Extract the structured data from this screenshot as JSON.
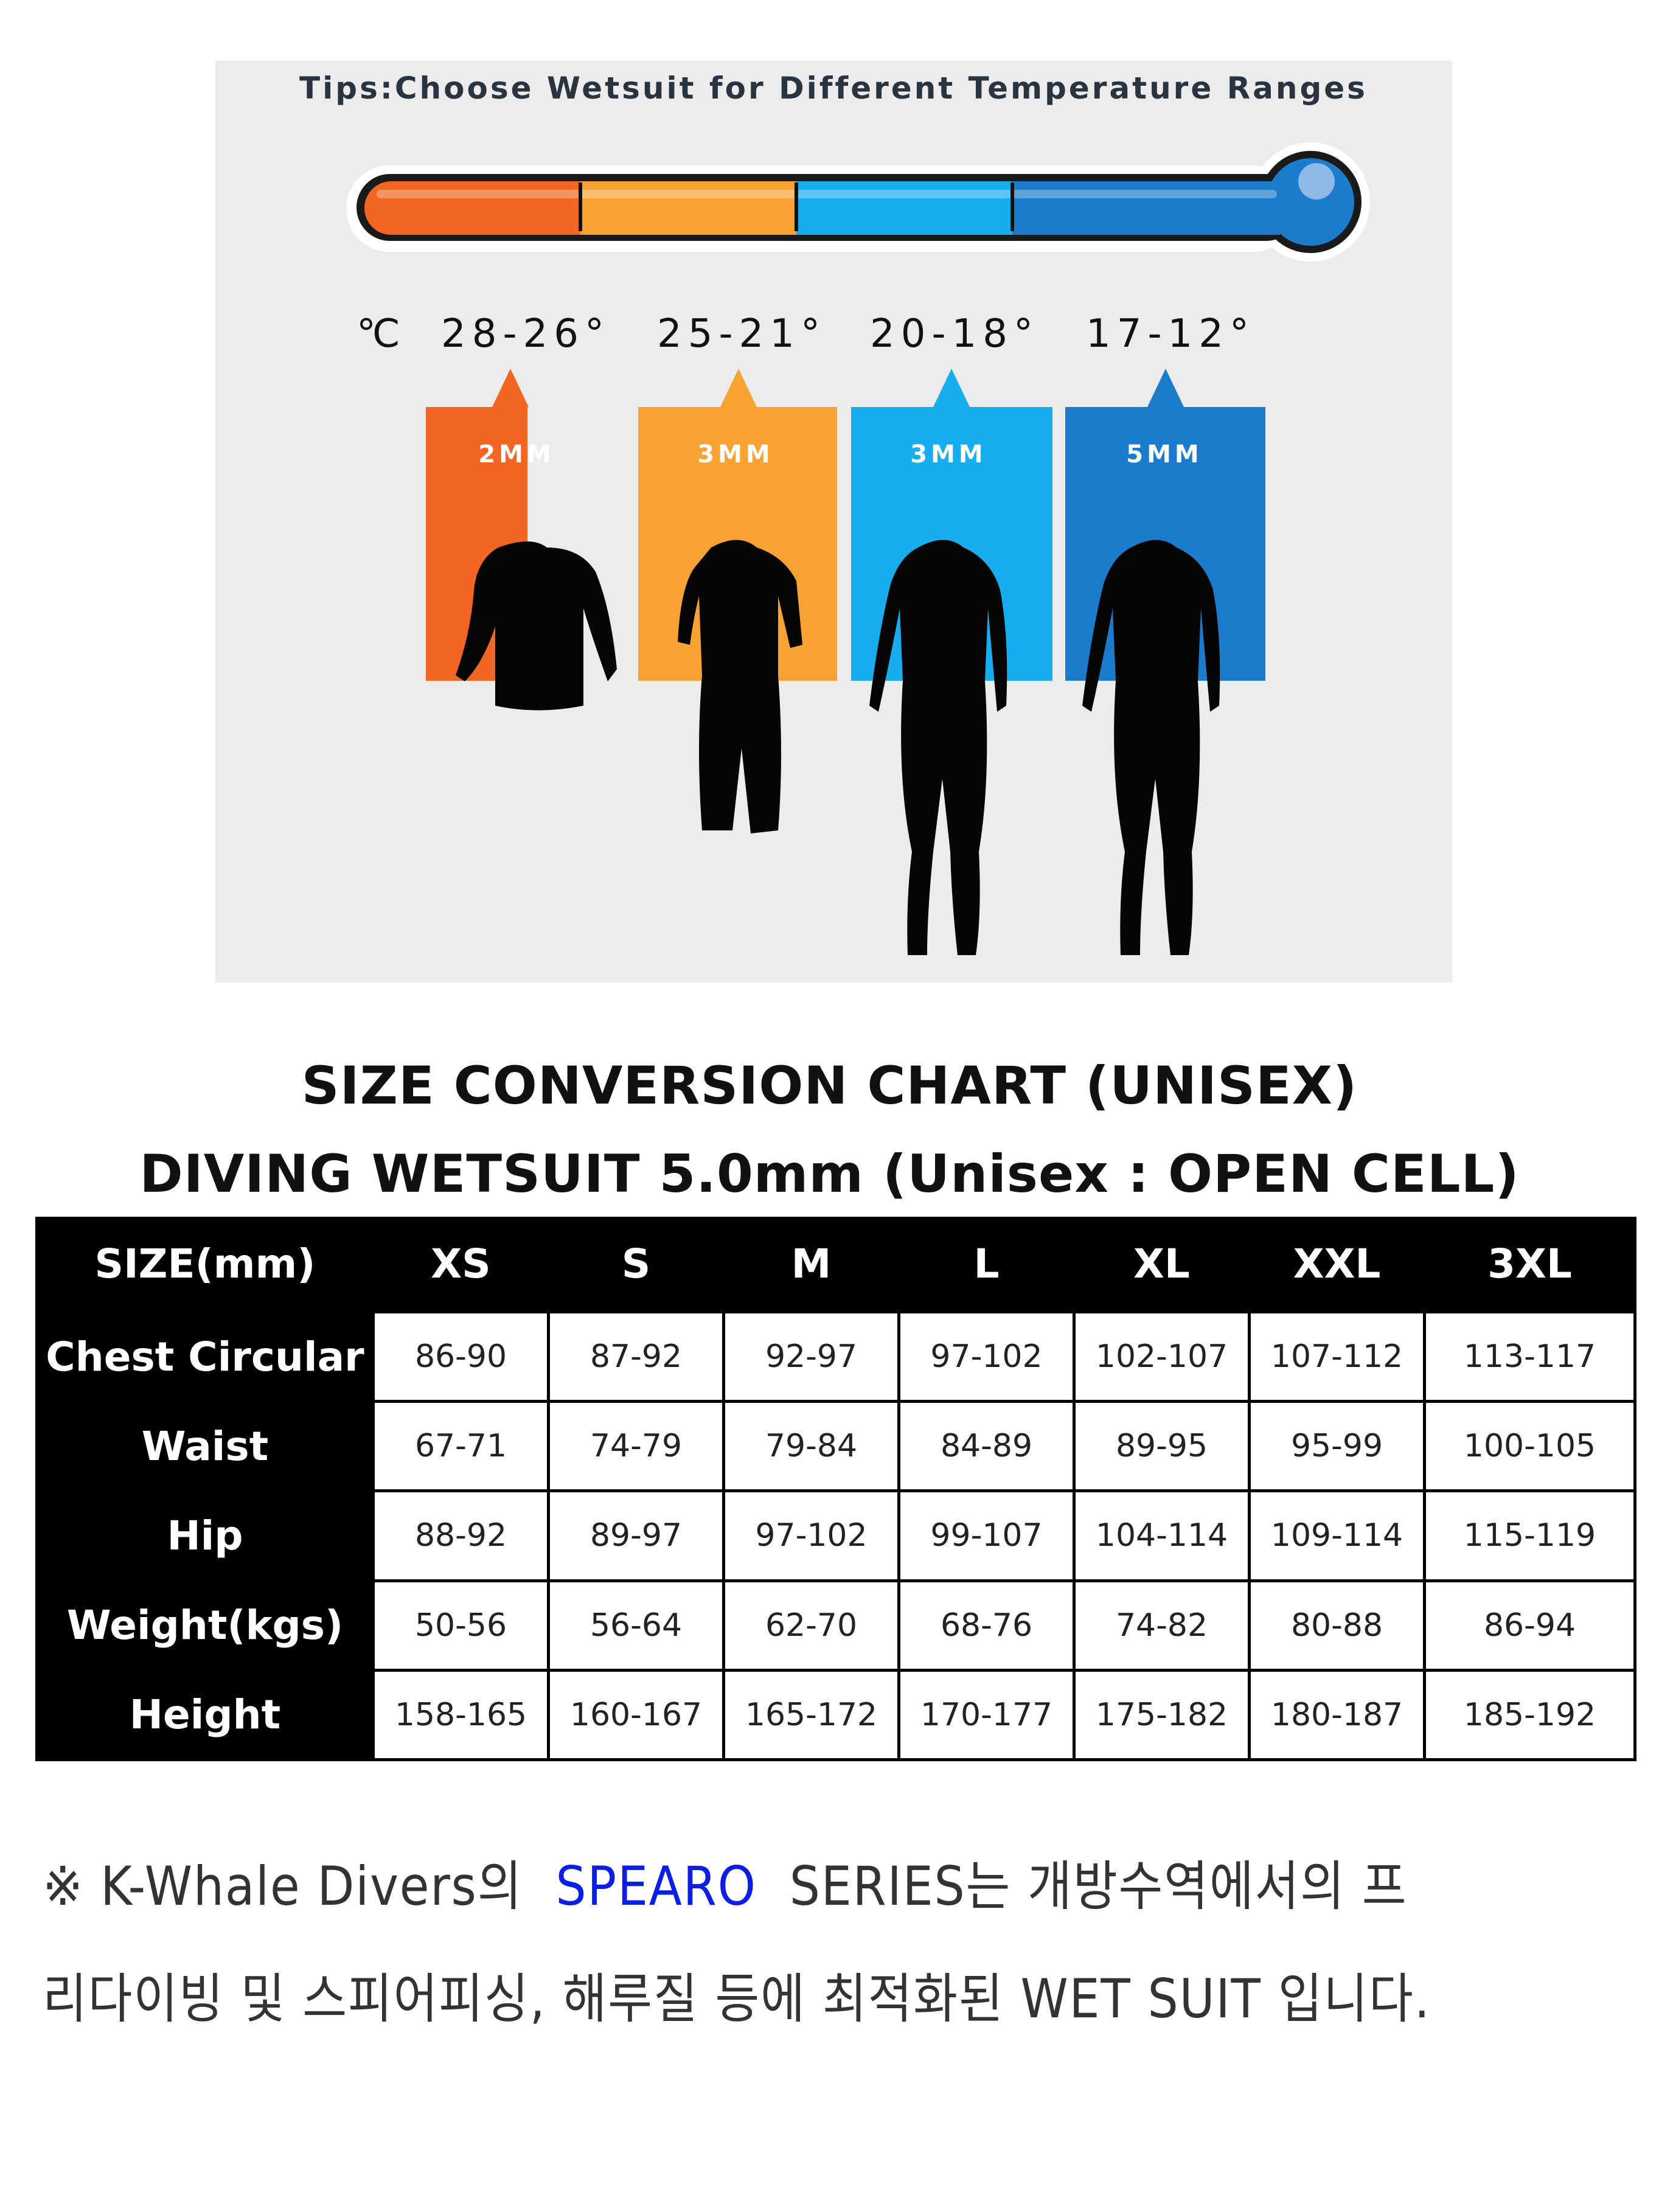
{
  "graphic": {
    "tips_title": "Tips:Choose Wetsuit for Different Temperature Ranges",
    "unit": "℃",
    "ranges": [
      {
        "temp": "28-26°",
        "thickness": "2MM",
        "color": "#f26522",
        "suit": "long-sleeve-top"
      },
      {
        "temp": "25-21°",
        "thickness": "3MM",
        "color": "#f7a233",
        "suit": "shorty"
      },
      {
        "temp": "20-18°",
        "thickness": "3MM",
        "color": "#17adef",
        "suit": "full-suit"
      },
      {
        "temp": "17-12°",
        "thickness": "5MM",
        "color": "#1b7ccc",
        "suit": "full-suit"
      }
    ]
  },
  "heading": {
    "line1": "SIZE CONVERSION CHART (UNISEX)",
    "line2": "DIVING WETSUIT 5.0mm (Unisex : OPEN CELL)"
  },
  "table": {
    "header": [
      "SIZE(mm)",
      "XS",
      "S",
      "M",
      "L",
      "XL",
      "XXL",
      "3XL"
    ],
    "rows": [
      {
        "label": "Chest Circular",
        "values": [
          "86-90",
          "87-92",
          "92-97",
          "97-102",
          "102-107",
          "107-112",
          "113-117"
        ]
      },
      {
        "label": "Waist",
        "values": [
          "67-71",
          "74-79",
          "79-84",
          "84-89",
          "89-95",
          "95-99",
          "100-105"
        ]
      },
      {
        "label": "Hip",
        "values": [
          "88-92",
          "89-97",
          "97-102",
          "99-107",
          "104-114",
          "109-114",
          "115-119"
        ]
      },
      {
        "label": "Weight(kgs)",
        "values": [
          "50-56",
          "56-64",
          "62-70",
          "68-76",
          "74-82",
          "80-88",
          "86-94"
        ]
      },
      {
        "label": "Height",
        "values": [
          "158-165",
          "160-167",
          "165-172",
          "170-177",
          "175-182",
          "180-187",
          "185-192"
        ]
      }
    ]
  },
  "footer": {
    "mark": "※",
    "brand": "K-Whale Divers의",
    "series": "SPEARO",
    "line1_rest": "SERIES는 개방수역에서의 프",
    "line2": "리다이빙 및 스피어피싱, 해루질 등에 최적화된 WET SUIT 입니다.",
    "series_color": "#0a1ee6"
  }
}
